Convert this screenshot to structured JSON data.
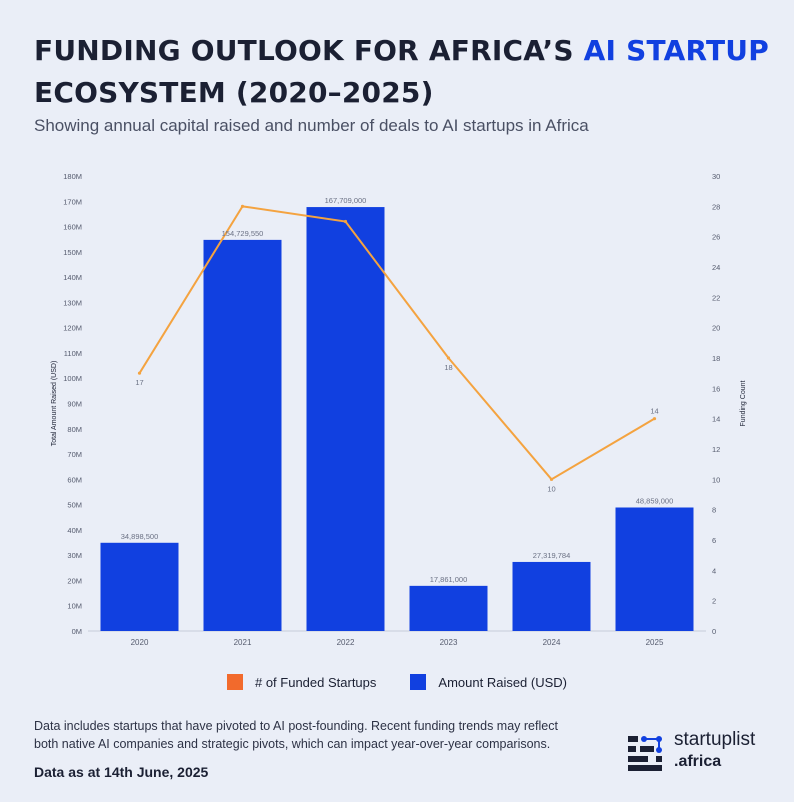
{
  "header": {
    "title_part1": "FUNDING OUTLOOK FOR AFRICA’S ",
    "title_highlight": "AI STARTUP",
    "title_part2": " ECOSYSTEM (2020–2025)",
    "subtitle": "Showing annual capital raised and number of deals to AI startups in Africa"
  },
  "colors": {
    "bar": "#1140e0",
    "line": "#f4a340",
    "legend_line_swatch": "#f26a2c",
    "background": "#eaeef7"
  },
  "chart_data": {
    "type": "bar",
    "categories": [
      "2020",
      "2021",
      "2022",
      "2023",
      "2024",
      "2025"
    ],
    "series": [
      {
        "name": "Amount Raised (USD)",
        "type": "bar",
        "axis": "left",
        "values": [
          34898500,
          154729550,
          167709000,
          17861000,
          27319784,
          48859000
        ],
        "labels": [
          "34,898,500",
          "154,729,550",
          "167,709,000",
          "17,861,000",
          "27,319,784",
          "48,859,000"
        ]
      },
      {
        "name": "# of Funded Startups",
        "type": "line",
        "axis": "right",
        "values": [
          17,
          28,
          27,
          18,
          10,
          14
        ],
        "labels": [
          "17",
          "",
          "",
          "18",
          "10",
          "14"
        ]
      }
    ],
    "ylabel": "Total Amount Raised (USD)",
    "y2label": "Funding Count",
    "ylim": [
      0,
      180000000
    ],
    "y2lim": [
      0,
      30
    ],
    "yticks": [
      "0M",
      "10M",
      "20M",
      "30M",
      "40M",
      "50M",
      "60M",
      "70M",
      "80M",
      "90M",
      "100M",
      "110M",
      "120M",
      "130M",
      "140M",
      "150M",
      "160M",
      "170M",
      "180M"
    ],
    "y2ticks": [
      "0",
      "2",
      "4",
      "6",
      "8",
      "10",
      "12",
      "14",
      "16",
      "18",
      "20",
      "22",
      "24",
      "26",
      "28",
      "30"
    ],
    "grid": false,
    "legend_position": "bottom"
  },
  "legend": {
    "items": [
      "# of Funded Startups",
      "Amount Raised (USD)"
    ]
  },
  "footer": {
    "note": "Data includes startups that have pivoted to AI post-founding. Recent funding trends may reflect both native AI companies and strategic pivots, which can impact year-over-year comparisons.",
    "as_of": "Data as at 14th June,  2025"
  },
  "logo": {
    "name": "startuplist",
    "suffix": ".africa"
  }
}
